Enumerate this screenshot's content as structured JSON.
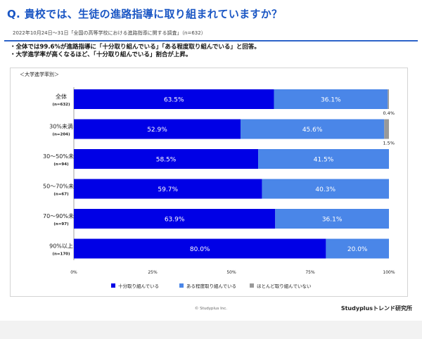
{
  "header": {
    "title": "Q. 貴校では、生徒の進路指導に取り組まれていますか？",
    "subtitle": "2022年10月24日～31日「全国の高等学校における進路指導に関する調査」（n=632）",
    "bullets": [
      "・全体では99.6%が進路指導に「十分取り組んでいる」「ある程度取り組んでいる」と回答。",
      "・大学進学率が高くなるほど、「十分取り組んでいる」割合が上昇。"
    ]
  },
  "chart_data": {
    "type": "bar",
    "orientation": "horizontal",
    "stacked": true,
    "group_label": "＜大学進学率別＞",
    "categories": [
      "全体",
      "30%未満",
      "30～50%未満",
      "50～70%未満",
      "70～90%未満",
      "90%以上"
    ],
    "category_n": [
      "(n=632)",
      "(n=204)",
      "(n=94)",
      "(n=67)",
      "(n=97)",
      "(n=170)"
    ],
    "series": [
      {
        "name": "十分取り組んでいる",
        "color": "#0000e6",
        "values": [
          63.5,
          52.9,
          58.5,
          59.7,
          63.9,
          80.0
        ]
      },
      {
        "name": "ある程度取り組んでいる",
        "color": "#4a86e8",
        "values": [
          36.1,
          45.6,
          41.5,
          40.3,
          36.1,
          20.0
        ]
      },
      {
        "name": "ほとんど取り組んでいない",
        "color": "#999999",
        "values": [
          0.4,
          1.5,
          0,
          0,
          0,
          0
        ]
      }
    ],
    "x_ticks": [
      "0%",
      "25%",
      "50%",
      "75%",
      "100%"
    ],
    "xlim": [
      0,
      100
    ],
    "legend_position": "bottom",
    "grid": false
  },
  "footer": {
    "copyright": "© Studyplus Inc.",
    "brand": "Studyplusトレンド研究所"
  }
}
